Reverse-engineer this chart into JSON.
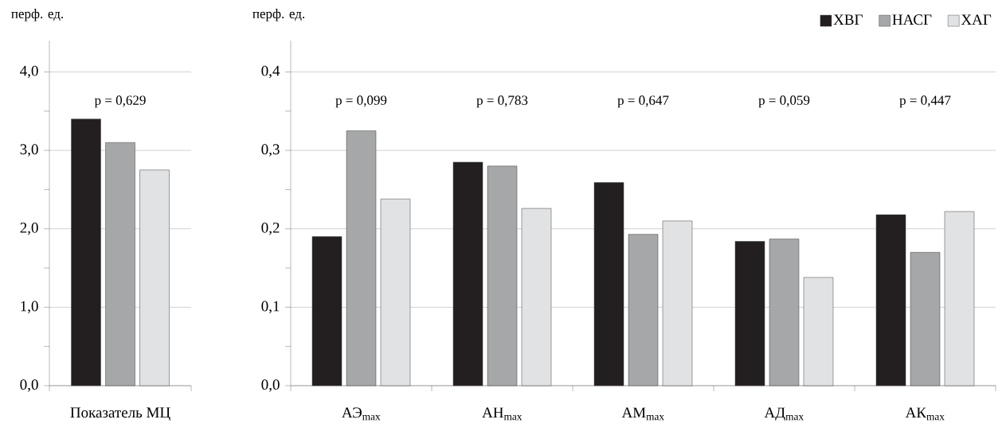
{
  "chart_data": [
    {
      "type": "bar",
      "ylabel": "перф. ед.",
      "categories": [
        "Показатель МЦ"
      ],
      "series": [
        {
          "color": "#231f20",
          "values": [
            3.4
          ]
        },
        {
          "color": "#a6a7a9",
          "values": [
            3.1
          ]
        },
        {
          "color": "#e1e2e3",
          "values": [
            2.75
          ]
        }
      ],
      "ylim": [
        0,
        4.4
      ],
      "yticks": [
        {
          "value": 0,
          "label": "0,0"
        },
        {
          "value": 0.5,
          "label": null
        },
        {
          "value": 1,
          "label": "1,0"
        },
        {
          "value": 1.5,
          "label": null
        },
        {
          "value": 2,
          "label": "2,0"
        },
        {
          "value": 2.5,
          "label": null
        },
        {
          "value": 3,
          "label": "3,0"
        },
        {
          "value": 3.5,
          "label": null
        },
        {
          "value": 4,
          "label": "4,0"
        }
      ],
      "grid": "y",
      "annotations": [
        "p = 0,629"
      ]
    },
    {
      "type": "bar",
      "ylabel": "перф. ед.",
      "categories": [
        "АЭ$_{max}$",
        "АН$_{max}$",
        "АМ$_{max}$",
        "АД$_{max}$",
        "АК$_{max}$"
      ],
      "series": [
        {
          "name": "ХВГ",
          "color": "#231f20",
          "values": [
            0.19,
            0.285,
            0.259,
            0.184,
            0.218
          ]
        },
        {
          "name": "НАСГ",
          "color": "#a6a7a9",
          "values": [
            0.325,
            0.28,
            0.193,
            0.187,
            0.17
          ]
        },
        {
          "name": "ХАГ",
          "color": "#e1e2e3",
          "values": [
            0.238,
            0.226,
            0.21,
            0.138,
            0.222
          ]
        }
      ],
      "ylim": [
        0,
        0.44
      ],
      "yticks": [
        {
          "value": 0,
          "label": "0,0"
        },
        {
          "value": 0.05,
          "label": null
        },
        {
          "value": 0.1,
          "label": "0,1"
        },
        {
          "value": 0.15,
          "label": null
        },
        {
          "value": 0.2,
          "label": "0,2"
        },
        {
          "value": 0.25,
          "label": null
        },
        {
          "value": 0.3,
          "label": "0,3"
        },
        {
          "value": 0.35,
          "label": null
        },
        {
          "value": 0.4,
          "label": "0,4"
        }
      ],
      "grid": "y",
      "legend": "top right",
      "annotations": [
        "p = 0,099",
        "p = 0,783",
        "p = 0,647",
        "p = 0,059",
        "p = 0,447"
      ]
    }
  ]
}
